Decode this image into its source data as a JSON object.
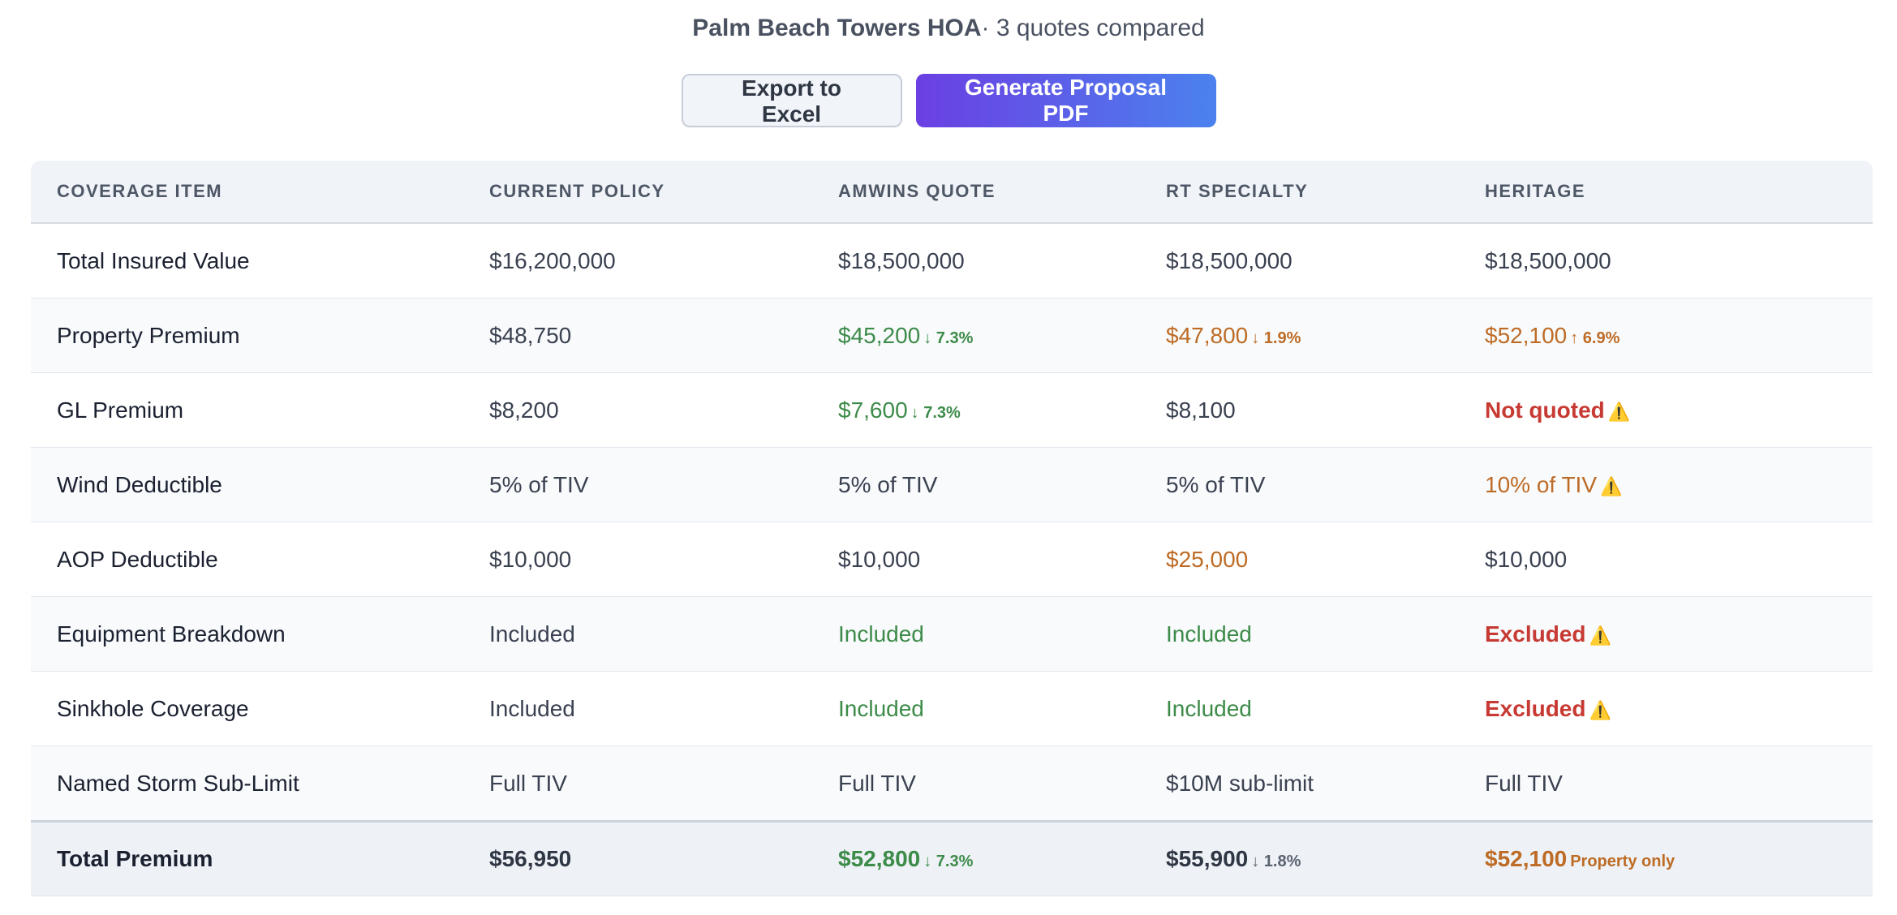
{
  "header": {
    "hoa_name": "Palm Beach Towers HOA",
    "subtitle": "· 3 quotes compared"
  },
  "actions": {
    "export_label": "Export to Excel",
    "pdf_label": "Generate Proposal PDF"
  },
  "columns": [
    "COVERAGE ITEM",
    "CURRENT POLICY",
    "AMWINS QUOTE",
    "RT SPECIALTY",
    "HERITAGE"
  ],
  "rows": [
    {
      "item": "Total Insured Value",
      "current": {
        "value": "$16,200,000",
        "tone": "normal"
      },
      "amwins": {
        "value": "$18,500,000",
        "tone": "normal"
      },
      "rt": {
        "value": "$18,500,000",
        "tone": "normal"
      },
      "heritage": {
        "value": "$18,500,000",
        "tone": "normal"
      }
    },
    {
      "item": "Property Premium",
      "current": {
        "value": "$48,750",
        "tone": "normal"
      },
      "amwins": {
        "value": "$45,200",
        "tone": "green",
        "change": "↓ 7.3%"
      },
      "rt": {
        "value": "$47,800",
        "tone": "orange",
        "change": "↓ 1.9%"
      },
      "heritage": {
        "value": "$52,100",
        "tone": "orange",
        "change": "↑ 6.9%"
      }
    },
    {
      "item": "GL Premium",
      "current": {
        "value": "$8,200",
        "tone": "normal"
      },
      "amwins": {
        "value": "$7,600",
        "tone": "green",
        "change": "↓ 7.3%"
      },
      "rt": {
        "value": "$8,100",
        "tone": "normal"
      },
      "heritage": {
        "value": "Not quoted",
        "tone": "red",
        "warn": "⚠️"
      }
    },
    {
      "item": "Wind Deductible",
      "current": {
        "value": "5% of TIV",
        "tone": "normal"
      },
      "amwins": {
        "value": "5% of TIV",
        "tone": "normal"
      },
      "rt": {
        "value": "5% of TIV",
        "tone": "normal"
      },
      "heritage": {
        "value": "10% of TIV",
        "tone": "orange",
        "warn": "⚠️"
      }
    },
    {
      "item": "AOP Deductible",
      "current": {
        "value": "$10,000",
        "tone": "normal"
      },
      "amwins": {
        "value": "$10,000",
        "tone": "normal"
      },
      "rt": {
        "value": "$25,000",
        "tone": "orange"
      },
      "heritage": {
        "value": "$10,000",
        "tone": "normal"
      }
    },
    {
      "item": "Equipment Breakdown",
      "current": {
        "value": "Included",
        "tone": "normal"
      },
      "amwins": {
        "value": "Included",
        "tone": "green"
      },
      "rt": {
        "value": "Included",
        "tone": "green"
      },
      "heritage": {
        "value": "Excluded",
        "tone": "red",
        "warn": "⚠️"
      }
    },
    {
      "item": "Sinkhole Coverage",
      "current": {
        "value": "Included",
        "tone": "normal"
      },
      "amwins": {
        "value": "Included",
        "tone": "green"
      },
      "rt": {
        "value": "Included",
        "tone": "green"
      },
      "heritage": {
        "value": "Excluded",
        "tone": "red",
        "warn": "⚠️"
      }
    },
    {
      "item": "Named Storm Sub-Limit",
      "current": {
        "value": "Full TIV",
        "tone": "normal"
      },
      "amwins": {
        "value": "Full TIV",
        "tone": "normal"
      },
      "rt": {
        "value": "$10M sub-limit",
        "tone": "normal"
      },
      "heritage": {
        "value": "Full TIV",
        "tone": "normal"
      }
    }
  ],
  "total": {
    "item": "Total Premium",
    "current": {
      "value": "$56,950",
      "tone": "dark"
    },
    "amwins": {
      "value": "$52,800",
      "tone": "green",
      "change": "↓ 7.3%"
    },
    "rt": {
      "value": "$55,900",
      "tone": "dark",
      "change": "↓ 1.8%"
    },
    "heritage": {
      "value": "$52,100",
      "tone": "orange",
      "note": "Property only"
    }
  },
  "colors": {
    "green": "#3d8b49",
    "orange": "#bd6b25",
    "red": "#c73a33",
    "warn": "#f2c12e",
    "accent_start": "#6b3fe3",
    "accent_end": "#4b82ee"
  },
  "icons": {
    "warning": "warning-icon",
    "down_arrow": "arrow-down-icon",
    "up_arrow": "arrow-up-icon"
  }
}
